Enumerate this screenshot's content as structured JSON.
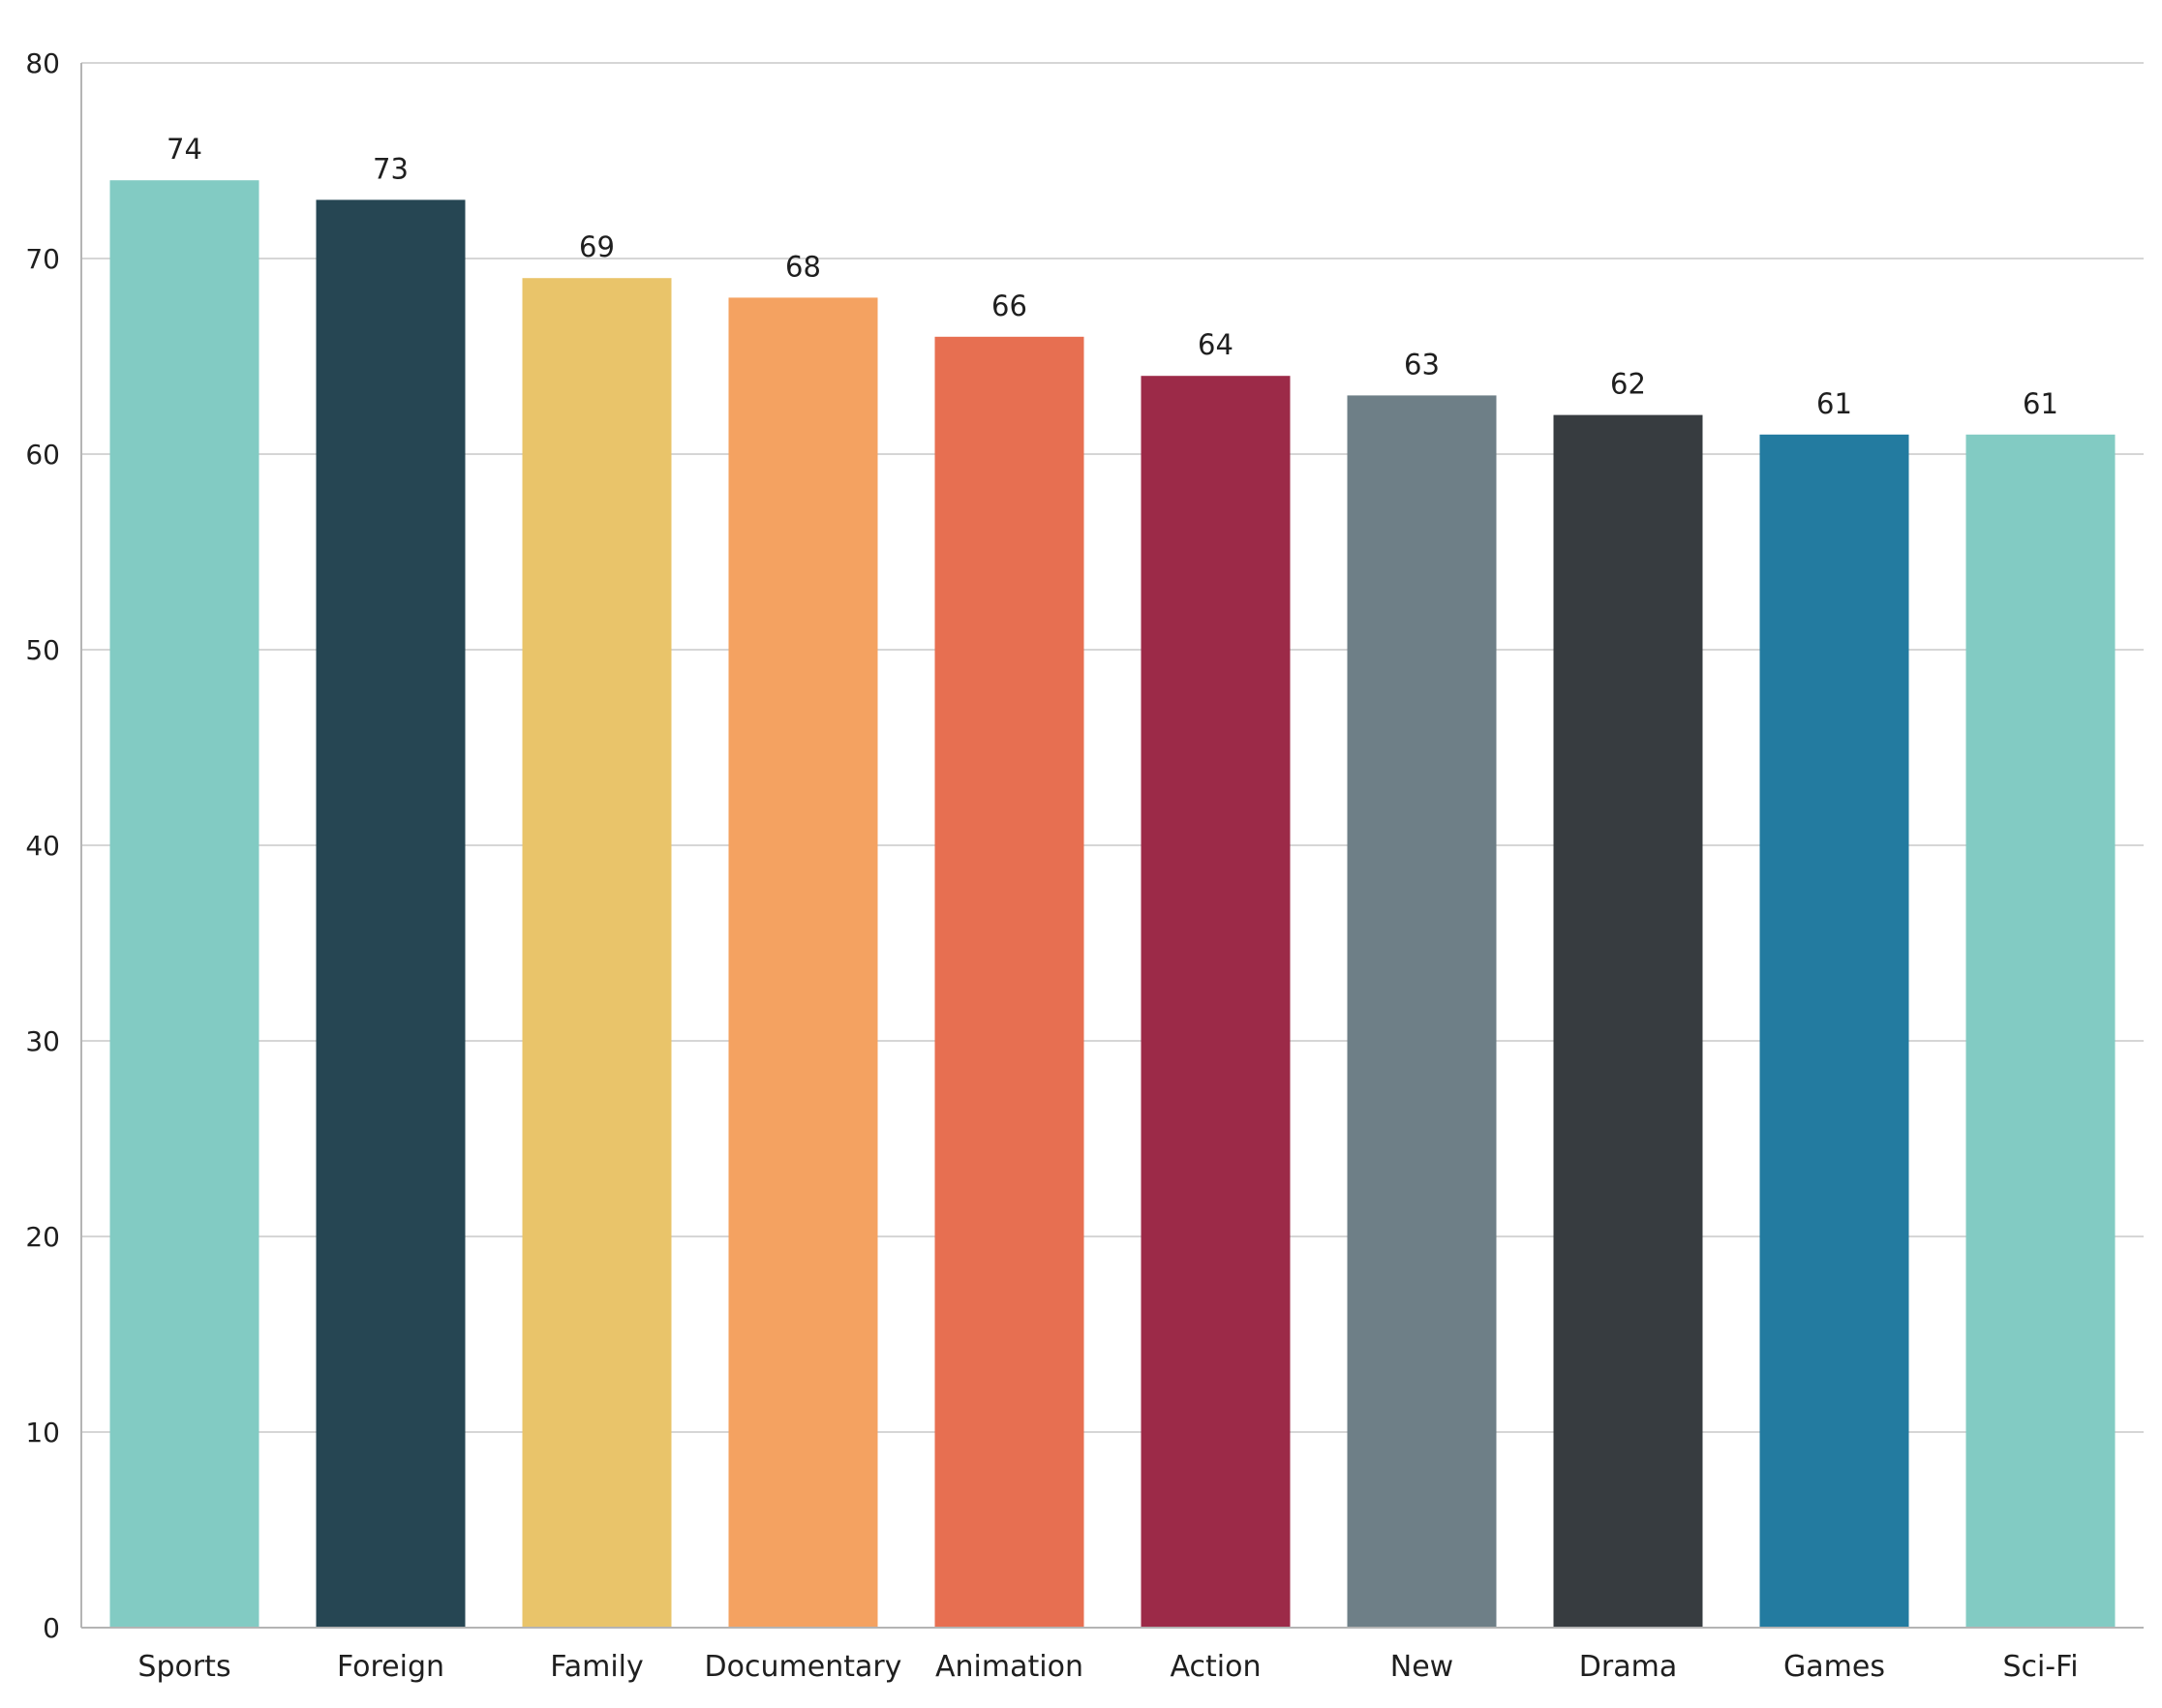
{
  "chart_data": {
    "type": "bar",
    "title": "",
    "xlabel": "",
    "ylabel": "",
    "ylim": [
      0,
      80
    ],
    "yticks": [
      0,
      10,
      20,
      30,
      40,
      50,
      60,
      70,
      80
    ],
    "grid": true,
    "legend": "none",
    "categories": [
      "Sports",
      "Foreign",
      "Family",
      "Documentary",
      "Animation",
      "Action",
      "New",
      "Drama",
      "Games",
      "Sci-Fi"
    ],
    "values": [
      74,
      73,
      69,
      68,
      66,
      64,
      63,
      62,
      61,
      61
    ],
    "colors": [
      "#82cbc3",
      "#264653",
      "#e9c46a",
      "#f4a261",
      "#e76f51",
      "#9c2a48",
      "#6e7f87",
      "#373c40",
      "#237ba0",
      "#82cbc3"
    ]
  }
}
